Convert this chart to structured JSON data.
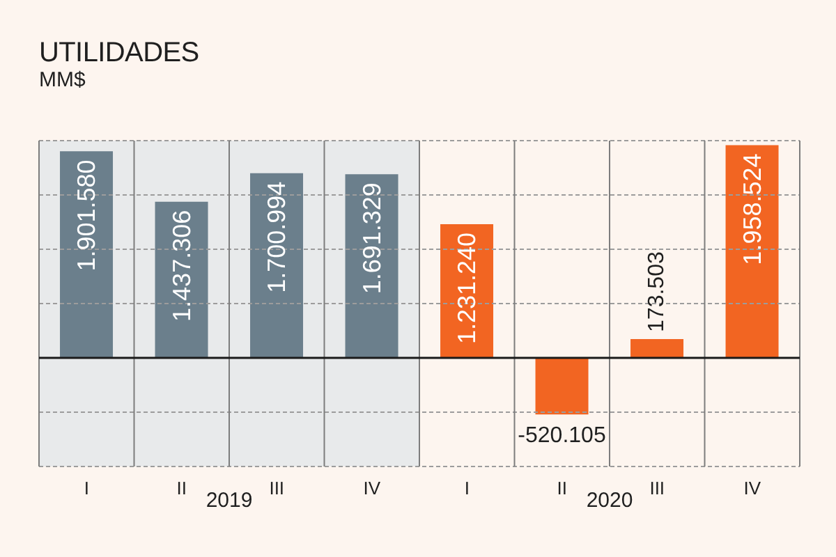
{
  "chart_data": {
    "type": "bar",
    "title": "UTILIDADES",
    "subtitle": "MM$",
    "categories": [
      "I",
      "II",
      "III",
      "IV",
      "I",
      "II",
      "III",
      "IV"
    ],
    "values": [
      1901580,
      1437306,
      1700994,
      1691329,
      1231240,
      -520105,
      173503,
      1958524
    ],
    "colors": [
      "#6b7f8c",
      "#6b7f8c",
      "#6b7f8c",
      "#6b7f8c",
      "#f26522",
      "#f26522",
      "#f26522",
      "#f26522"
    ],
    "value_labels": [
      "1.901.580",
      "1.437.306",
      "1.700.994",
      "1.691.329",
      "1.231.240",
      "-520.105",
      "173.503",
      "1.958.524"
    ],
    "ylim": [
      -1000000,
      2000000
    ],
    "yticks": [
      {
        "value": -1000000,
        "label": null
      },
      {
        "value": -500000,
        "label": null
      },
      {
        "value": 0,
        "label": null
      },
      {
        "value": 500000,
        "label": null
      },
      {
        "value": 1000000,
        "label": null
      },
      {
        "value": 1500000,
        "label": null
      },
      {
        "value": 2000000,
        "label": null
      }
    ],
    "grid": true,
    "tick_labels": "x",
    "ref_lines": [
      {
        "axis": "y",
        "value": 0,
        "color": "#1a1a1a"
      }
    ],
    "bands": [
      {
        "axis": "x",
        "from": "I",
        "to": "IV",
        "color": "#e8eaeb"
      }
    ],
    "annotations": [
      "2019",
      "2020"
    ]
  }
}
